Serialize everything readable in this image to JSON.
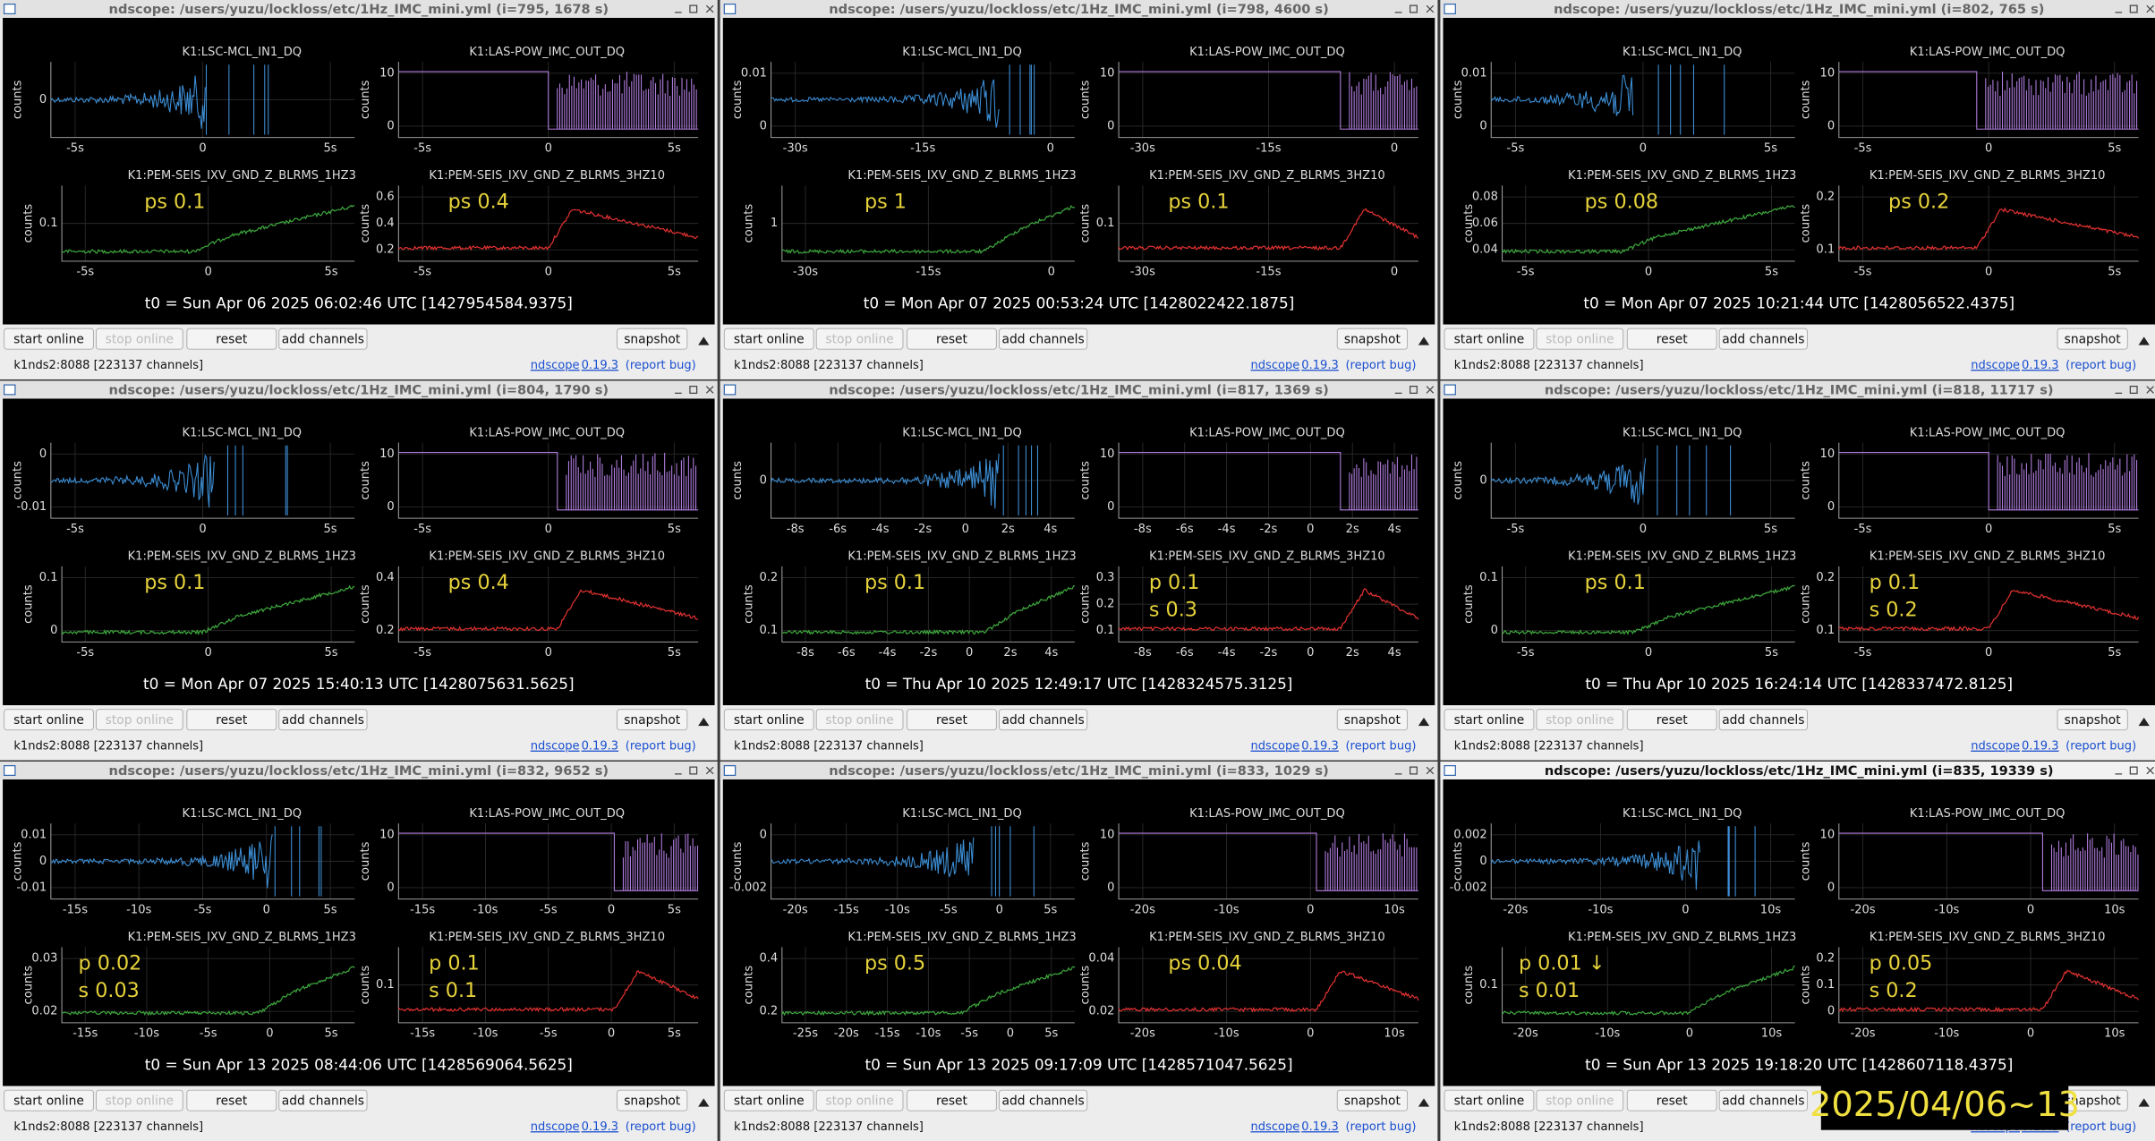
{
  "channels": [
    "K1:LSC-MCL_IN1_DQ",
    "K1:LAS-POW_IMC_OUT_DQ",
    "K1:PEM-SEIS_IXV_GND_Z_BLRMS_1HZ3",
    "K1:PEM-SEIS_IXV_GND_Z_BLRMS_3HZ10"
  ],
  "ylabel": "counts",
  "buttons": [
    "start online",
    "stop online",
    "reset",
    "add channels",
    "snapshot"
  ],
  "status": "k1nds2:8088  [223137 channels]",
  "links": [
    "ndscope",
    "0.19.3",
    "(report bug)"
  ],
  "overlay": "2025/04/06~13",
  "windows": [
    {
      "title": "ndscope: /users/yuzu/lockloss/etc/1Hz_IMC_mini.yml (i=795, 1678 s)",
      "plots": [
        {
          "yticks": [
            "0"
          ],
          "xticks": [
            "-5s",
            "0",
            "5s"
          ],
          "notes": []
        },
        {
          "yticks": [
            "10",
            "0"
          ],
          "xticks": [
            "-5s",
            "0",
            "5s"
          ],
          "notes": []
        },
        {
          "yticks": [
            "0.1"
          ],
          "xticks": [
            "-5s",
            "0",
            "5s"
          ],
          "notes": [
            "ps 0.1"
          ]
        },
        {
          "yticks": [
            "0.6",
            "0.4",
            "0.2"
          ],
          "xticks": [
            "-5s",
            "0",
            "5s"
          ],
          "notes": [
            "ps 0.4"
          ]
        }
      ],
      "t0": "t0 = Sun Apr 06 2025 06:02:46 UTC [1427954584.9375]"
    },
    {
      "title": "ndscope: /users/yuzu/lockloss/etc/1Hz_IMC_mini.yml (i=798, 4600 s)",
      "plots": [
        {
          "yticks": [
            "0.01",
            "0"
          ],
          "xticks": [
            "-30s",
            "-15s",
            "0"
          ],
          "notes": []
        },
        {
          "yticks": [
            "10",
            "0"
          ],
          "xticks": [
            "-30s",
            "-15s",
            "0"
          ],
          "notes": []
        },
        {
          "yticks": [
            "1"
          ],
          "xticks": [
            "-30s",
            "-15s",
            "0"
          ],
          "notes": [
            "ps 1"
          ]
        },
        {
          "yticks": [
            "0.1"
          ],
          "xticks": [
            "-30s",
            "-15s",
            "0"
          ],
          "notes": [
            "ps 0.1"
          ]
        }
      ],
      "t0": "t0 = Mon Apr 07 2025 00:53:24 UTC [1428022422.1875]"
    },
    {
      "title": "ndscope: /users/yuzu/lockloss/etc/1Hz_IMC_mini.yml (i=802, 765 s)",
      "plots": [
        {
          "yticks": [
            "0.01",
            "0"
          ],
          "xticks": [
            "-5s",
            "0",
            "5s"
          ],
          "notes": []
        },
        {
          "yticks": [
            "10",
            "0"
          ],
          "xticks": [
            "-5s",
            "0",
            "5s"
          ],
          "notes": []
        },
        {
          "yticks": [
            "0.08",
            "0.06",
            "0.04"
          ],
          "xticks": [
            "-5s",
            "0",
            "5s"
          ],
          "notes": [
            "ps 0.08"
          ]
        },
        {
          "yticks": [
            "0.2",
            "0.1"
          ],
          "xticks": [
            "-5s",
            "0",
            "5s"
          ],
          "notes": [
            "ps 0.2"
          ]
        }
      ],
      "t0": "t0 = Mon Apr 07 2025 10:21:44 UTC [1428056522.4375]"
    },
    {
      "title": "ndscope: /users/yuzu/lockloss/etc/1Hz_IMC_mini.yml (i=804, 1790 s)",
      "plots": [
        {
          "yticks": [
            "0",
            "-0.01"
          ],
          "xticks": [
            "-5s",
            "0",
            "5s"
          ],
          "notes": []
        },
        {
          "yticks": [
            "10",
            "0"
          ],
          "xticks": [
            "-5s",
            "0",
            "5s"
          ],
          "notes": []
        },
        {
          "yticks": [
            "0.1",
            "0"
          ],
          "xticks": [
            "-5s",
            "0",
            "5s"
          ],
          "notes": [
            "ps 0.1"
          ]
        },
        {
          "yticks": [
            "0.4",
            "0.2"
          ],
          "xticks": [
            "-5s",
            "0",
            "5s"
          ],
          "notes": [
            "ps 0.4"
          ]
        }
      ],
      "t0": "t0 = Mon Apr 07 2025 15:40:13 UTC [1428075631.5625]"
    },
    {
      "title": "ndscope: /users/yuzu/lockloss/etc/1Hz_IMC_mini.yml (i=817, 1369 s)",
      "plots": [
        {
          "yticks": [
            "0"
          ],
          "xticks": [
            "-8s",
            "-6s",
            "-4s",
            "-2s",
            "0",
            "2s",
            "4s"
          ],
          "notes": []
        },
        {
          "yticks": [
            "10",
            "0"
          ],
          "xticks": [
            "-8s",
            "-6s",
            "-4s",
            "-2s",
            "0",
            "2s",
            "4s"
          ],
          "notes": []
        },
        {
          "yticks": [
            "0.2",
            "0.1"
          ],
          "xticks": [
            "-8s",
            "-6s",
            "-4s",
            "-2s",
            "0",
            "2s",
            "4s"
          ],
          "notes": [
            "ps 0.1"
          ]
        },
        {
          "yticks": [
            "0.3",
            "0.2",
            "0.1"
          ],
          "xticks": [
            "-8s",
            "-6s",
            "-4s",
            "-2s",
            "0",
            "2s",
            "4s"
          ],
          "notes": [
            "p 0.1",
            "s 0.3"
          ]
        }
      ],
      "t0": "t0 = Thu Apr 10 2025 12:49:17 UTC [1428324575.3125]"
    },
    {
      "title": "ndscope: /users/yuzu/lockloss/etc/1Hz_IMC_mini.yml (i=818, 11717 s)",
      "plots": [
        {
          "yticks": [
            "0"
          ],
          "xticks": [
            "-5s",
            "0",
            "5s"
          ],
          "notes": []
        },
        {
          "yticks": [
            "10",
            "0"
          ],
          "xticks": [
            "-5s",
            "0",
            "5s"
          ],
          "notes": []
        },
        {
          "yticks": [
            "0.1",
            "0"
          ],
          "xticks": [
            "-5s",
            "0",
            "5s"
          ],
          "notes": [
            "ps 0.1"
          ]
        },
        {
          "yticks": [
            "0.2",
            "0.1"
          ],
          "xticks": [
            "-5s",
            "0",
            "5s"
          ],
          "notes": [
            "p 0.1",
            "s 0.2"
          ]
        }
      ],
      "t0": "t0 = Thu Apr 10 2025 16:24:14 UTC [1428337472.8125]"
    },
    {
      "title": "ndscope: /users/yuzu/lockloss/etc/1Hz_IMC_mini.yml (i=832, 9652 s)",
      "plots": [
        {
          "yticks": [
            "0.01",
            "0",
            "-0.01"
          ],
          "xticks": [
            "-15s",
            "-10s",
            "-5s",
            "0",
            "5s"
          ],
          "notes": []
        },
        {
          "yticks": [
            "10",
            "0"
          ],
          "xticks": [
            "-15s",
            "-10s",
            "-5s",
            "0",
            "5s"
          ],
          "notes": []
        },
        {
          "yticks": [
            "0.03",
            "0.02"
          ],
          "xticks": [
            "-15s",
            "-10s",
            "-5s",
            "0",
            "5s"
          ],
          "notes": [
            "p 0.02",
            "s 0.03"
          ]
        },
        {
          "yticks": [
            "0.1"
          ],
          "xticks": [
            "-15s",
            "-10s",
            "-5s",
            "0",
            "5s"
          ],
          "notes": [
            "p 0.1",
            "s 0.1"
          ]
        }
      ],
      "t0": "t0 = Sun Apr 13 2025 08:44:06 UTC [1428569064.5625]"
    },
    {
      "title": "ndscope: /users/yuzu/lockloss/etc/1Hz_IMC_mini.yml (i=833, 1029 s)",
      "plots": [
        {
          "yticks": [
            "0",
            "-0.002"
          ],
          "xticks": [
            "-20s",
            "-15s",
            "-10s",
            "-5s",
            "0",
            "5s"
          ],
          "notes": []
        },
        {
          "yticks": [
            "10",
            "0"
          ],
          "xticks": [
            "-20s",
            "-10s",
            "0",
            "10s"
          ],
          "notes": []
        },
        {
          "yticks": [
            "0.4",
            "0.2"
          ],
          "xticks": [
            "-25s",
            "-20s",
            "-15s",
            "-10s",
            "-5s",
            "0",
            "5s"
          ],
          "notes": [
            "ps 0.5"
          ]
        },
        {
          "yticks": [
            "0.04",
            "0.02"
          ],
          "xticks": [
            "-20s",
            "-10s",
            "0",
            "10s"
          ],
          "notes": [
            "ps 0.04"
          ]
        }
      ],
      "t0": "t0 = Sun Apr 13 2025 09:17:09 UTC [1428571047.5625]"
    },
    {
      "title": "ndscope: /users/yuzu/lockloss/etc/1Hz_IMC_mini.yml (i=835, 19339 s)",
      "plots": [
        {
          "yticks": [
            "0.002",
            "0",
            "-0.002"
          ],
          "xticks": [
            "-20s",
            "-10s",
            "0",
            "10s"
          ],
          "notes": []
        },
        {
          "yticks": [
            "10",
            "0"
          ],
          "xticks": [
            "-20s",
            "-10s",
            "0",
            "10s"
          ],
          "notes": []
        },
        {
          "yticks": [
            "0.1"
          ],
          "xticks": [
            "-20s",
            "-10s",
            "0",
            "10s"
          ],
          "notes": [
            "p 0.01 ↓",
            "s 0.01"
          ]
        },
        {
          "yticks": [
            "0.2",
            "0.1",
            "0"
          ],
          "xticks": [
            "-20s",
            "-10s",
            "0",
            "10s"
          ],
          "notes": [
            "p 0.05",
            "s 0.2"
          ]
        }
      ],
      "t0": "t0 = Sun Apr 13 2025 19:18:20 UTC [1428607118.4375]"
    }
  ]
}
